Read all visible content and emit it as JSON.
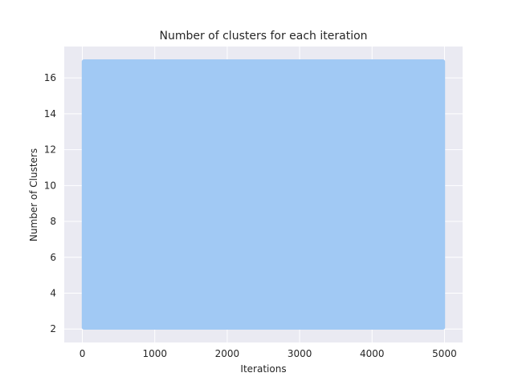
{
  "chart_data": {
    "type": "line",
    "title": "Number of clusters for each iteration",
    "xlabel": "Iterations",
    "ylabel": "Number of Clusters",
    "xlim": [
      -250,
      5250
    ],
    "ylim": [
      1.25,
      17.75
    ],
    "xticks": [
      0,
      1000,
      2000,
      3000,
      4000,
      5000
    ],
    "xtick_labels": [
      "0",
      "1000",
      "2000",
      "3000",
      "4000",
      "5000"
    ],
    "yticks": [
      2,
      4,
      6,
      8,
      10,
      12,
      14,
      16
    ],
    "ytick_labels": [
      "2",
      "4",
      "6",
      "8",
      "10",
      "12",
      "14",
      "16"
    ],
    "grid": true,
    "style": "seaborn-darkgrid",
    "series": [
      {
        "color": "#a1c9f4",
        "x_range": [
          0,
          5000
        ],
        "value_range": [
          2,
          17
        ],
        "description_values": "oscillates rapidly between min and max every iteration, filling the band"
      }
    ]
  }
}
